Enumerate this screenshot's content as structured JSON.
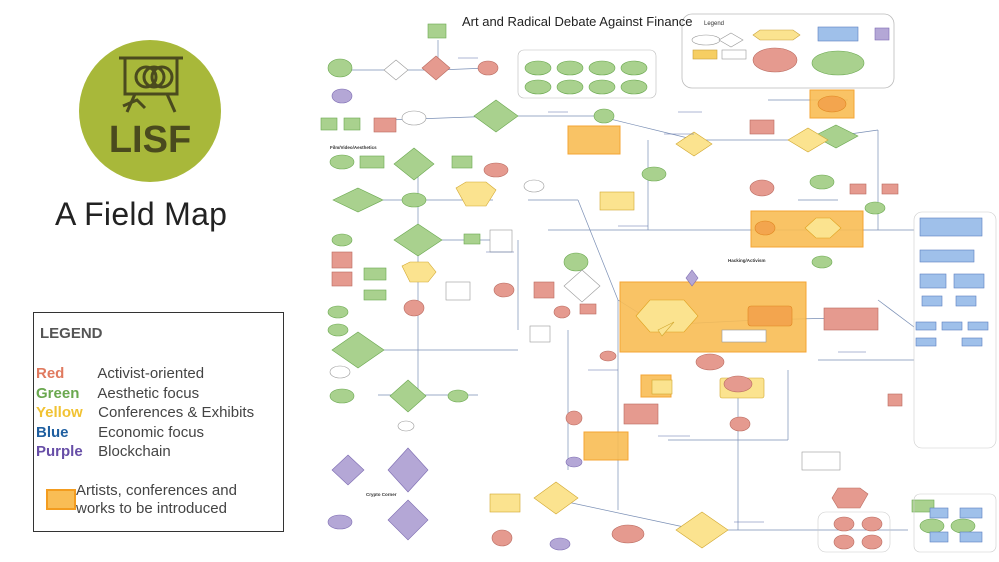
{
  "logo": {
    "text": "LISF",
    "circle_color": "#a8b83a",
    "icon": "easel-coins-icon"
  },
  "subtitle": "A Field Map",
  "legend": {
    "title": "LEGEND",
    "items": [
      {
        "category": "Red",
        "description": "Activist-oriented",
        "color": "#e07a5f"
      },
      {
        "category": "Green",
        "description": "Aesthetic focus",
        "color": "#6aa84f"
      },
      {
        "category": "Yellow",
        "description": "Conferences & Exhibits",
        "color": "#f1c232"
      },
      {
        "category": "Blue",
        "description": "Economic focus",
        "color": "#1f5fa0"
      },
      {
        "category": "Purple",
        "description": "Blockchain",
        "color": "#674ea7"
      }
    ],
    "swatch_label": "Artists, conferences and works to be introduced",
    "swatch_color": "#f9bd55"
  },
  "map": {
    "title": "Art and Radical Debate Against Finance",
    "legend_heading": "Legend",
    "section_labels": {
      "film": "Film/Video/Aesthetics",
      "hacking": "Hacking/Activism",
      "crypto": "Crypto Corner"
    }
  }
}
